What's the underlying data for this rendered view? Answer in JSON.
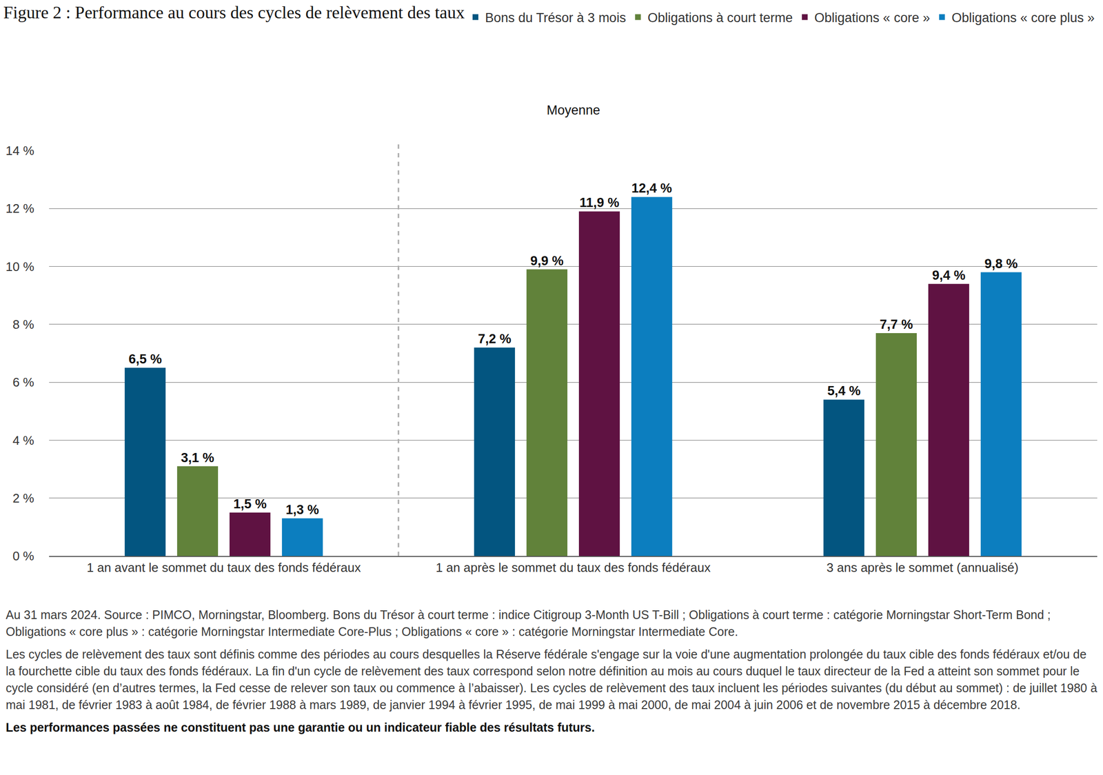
{
  "chart_data": {
    "type": "bar",
    "title": "Figure 2 : Performance au cours des cycles de relèvement des taux",
    "annotation": "Moyenne",
    "categories": [
      "1 an avant le sommet du taux des fonds fédéraux",
      "1 an après le sommet du taux des fonds fédéraux",
      "3 ans après le sommet (annualisé)"
    ],
    "series": [
      {
        "name": "Bons du Trésor à 3 mois",
        "color": "#035580",
        "values": [
          6.5,
          7.2,
          5.4
        ],
        "value_labels": [
          "6,5 %",
          "7,2 %",
          "5,4 %"
        ]
      },
      {
        "name": "Obligations à court terme",
        "color": "#61823a",
        "values": [
          3.1,
          9.9,
          7.7
        ],
        "value_labels": [
          "3,1 %",
          "9,9 %",
          "7,7 %"
        ]
      },
      {
        "name": "Obligations « core »",
        "color": "#5f1242",
        "values": [
          1.5,
          11.9,
          9.4
        ],
        "value_labels": [
          "1,5 %",
          "11,9 %",
          "9,4 %"
        ]
      },
      {
        "name": "Obligations « core plus »",
        "color": "#0c7ebf",
        "values": [
          1.3,
          12.4,
          9.8
        ],
        "value_labels": [
          "1,3 %",
          "12,4 %",
          "9,8 %"
        ]
      }
    ],
    "ylim": [
      0,
      14
    ],
    "yticks": [
      {
        "value": 0,
        "label": "0 %"
      },
      {
        "value": 2,
        "label": "2 %"
      },
      {
        "value": 4,
        "label": "4 %"
      },
      {
        "value": 6,
        "label": "6 %"
      },
      {
        "value": 8,
        "label": "8 %"
      },
      {
        "value": 10,
        "label": "10 %"
      },
      {
        "value": 12,
        "label": "12 %"
      },
      {
        "value": 14,
        "label": "14 %"
      }
    ],
    "grid": true,
    "legend": "top right",
    "data_labels": true,
    "notes": [
      "Au 31 mars 2024. Source : PIMCO, Morningstar, Bloomberg. Bons du Trésor à court terme : indice Citigroup 3-Month US T-Bill ; Obligations à court terme : catégorie Morningstar Short-Term Bond ; Obligations « core plus » : catégorie Morningstar Intermediate Core-Plus ; Obligations « core » : catégorie Morningstar Intermediate Core.",
      "Les cycles de relèvement des taux sont définis comme des périodes au cours desquelles la Réserve fédérale s'engage sur la voie d'une augmentation prolongée du taux cible des fonds fédéraux et/ou de la fourchette cible du taux des fonds fédéraux. La fin d'un cycle de relèvement des taux correspond selon notre définition au mois au cours duquel le taux directeur de la Fed a atteint son sommet pour le cycle considéré (en d’autres termes, la Fed cesse de relever son taux ou commence à l’abaisser). Les cycles de relèvement des taux incluent les périodes suivantes (du début au sommet) : de juillet 1980 à mai 1981, de février 1983 à août 1984, de février 1988 à mars 1989, de janvier 1994 à février 1995, de mai 1999 à mai 2000, de mai 2004 à juin 2006 et de novembre 2015 à décembre 2018."
    ],
    "disclaimer": "Les performances passées ne constituent pas une garantie ou un indicateur fiable des résultats futurs."
  }
}
